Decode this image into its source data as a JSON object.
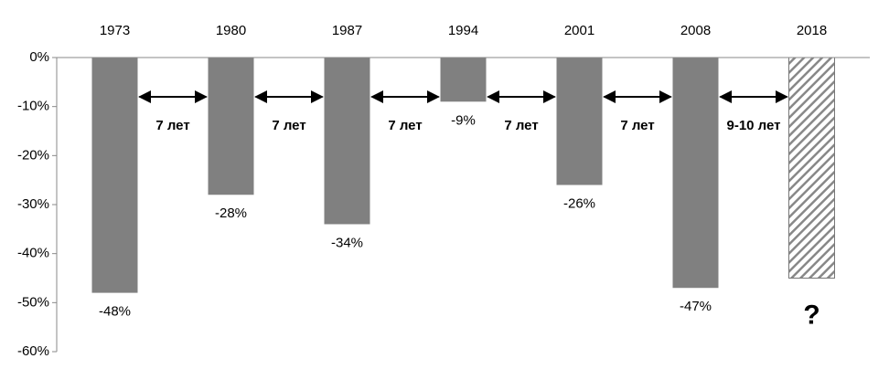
{
  "chart_data": {
    "type": "bar",
    "categories": [
      "1973",
      "1980",
      "1987",
      "1994",
      "2001",
      "2008",
      "2018"
    ],
    "values": [
      -48,
      -28,
      -34,
      -9,
      -26,
      -47,
      -45
    ],
    "value_labels": [
      "-48%",
      "-28%",
      "-34%",
      "-9%",
      "-26%",
      "-47%",
      null
    ],
    "color": "#808080",
    "hatched": [
      false,
      false,
      false,
      false,
      false,
      false,
      true
    ],
    "unknown_label": "?",
    "gap_labels": [
      "7 лет",
      "7 лет",
      "7 лет",
      "7 лет",
      "7 лет",
      "9-10 лет"
    ],
    "ylim": [
      0,
      -60
    ],
    "yticks": [
      {
        "value": 0,
        "label": "0%"
      },
      {
        "value": -10,
        "label": "-10%"
      },
      {
        "value": -20,
        "label": "-20%"
      },
      {
        "value": -30,
        "label": "-30%"
      },
      {
        "value": -40,
        "label": "-40%"
      },
      {
        "value": -50,
        "label": "-50%"
      },
      {
        "value": -60,
        "label": "-60%"
      }
    ],
    "grid": false
  }
}
